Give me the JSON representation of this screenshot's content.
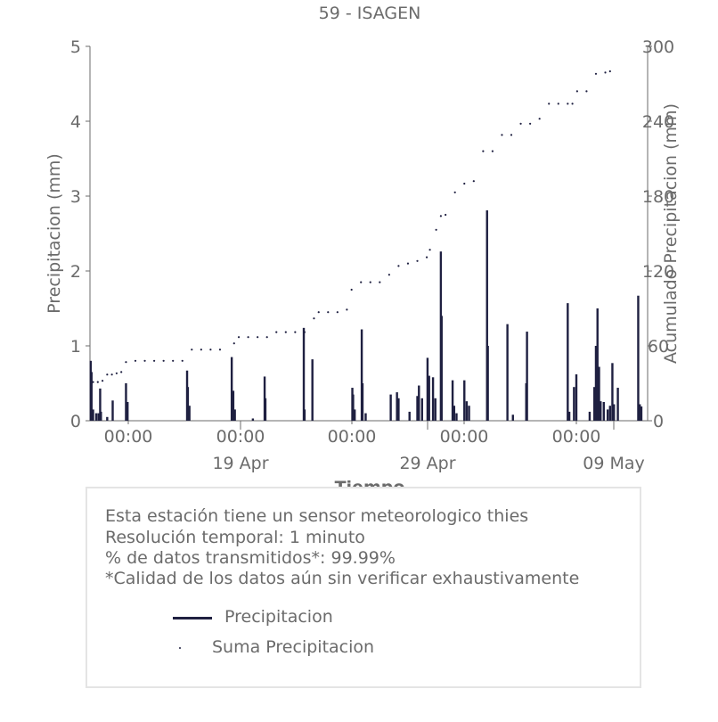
{
  "chart_data": {
    "type": "bar",
    "title": "59 - ISAGEN",
    "xlabel": "Tiempo",
    "ylabel": "Precipitacion (mm)",
    "y2label": "Acumulado Precipitacion (mm)",
    "ylim": [
      0,
      5
    ],
    "y2lim": [
      0,
      300
    ],
    "yticks": [
      "0",
      "1",
      "2",
      "3",
      "4",
      "5"
    ],
    "y2ticks": [
      "0",
      "60",
      "120",
      "180",
      "240",
      "300"
    ],
    "xlim": [
      "2025-04-10 20:00",
      "2025-05-10 12:00"
    ],
    "xticks_minor": [
      "00:00",
      "00:00",
      "00:00",
      "00:00",
      "00:00"
    ],
    "xticks_major": [
      "19 Apr",
      "29 Apr",
      "09 May"
    ],
    "grid": false,
    "series": [
      {
        "name": "Precipitacion",
        "type": "bar",
        "color": "#1f2041",
        "points": [
          [
            "2025-04-10 21:00",
            0.8
          ],
          [
            "2025-04-10 22:00",
            0.65
          ],
          [
            "2025-04-11 00:00",
            0.15
          ],
          [
            "2025-04-11 04:00",
            0.1
          ],
          [
            "2025-04-11 07:00",
            0.1
          ],
          [
            "2025-04-11 09:00",
            0.43
          ],
          [
            "2025-04-11 10:00",
            0.12
          ],
          [
            "2025-04-11 18:00",
            0.05
          ],
          [
            "2025-04-12 01:00",
            0.27
          ],
          [
            "2025-04-12 18:00",
            0.5
          ],
          [
            "2025-04-12 20:00",
            0.25
          ],
          [
            "2025-04-16 00:00",
            0.67
          ],
          [
            "2025-04-16 01:00",
            0.45
          ],
          [
            "2025-04-16 03:00",
            0.2
          ],
          [
            "2025-04-18 09:00",
            0.85
          ],
          [
            "2025-04-18 11:00",
            0.4
          ],
          [
            "2025-04-18 13:00",
            0.15
          ],
          [
            "2025-04-19 12:00",
            0.03
          ],
          [
            "2025-04-20 03:00",
            0.59
          ],
          [
            "2025-04-20 04:00",
            0.3
          ],
          [
            "2025-04-22 05:00",
            1.24
          ],
          [
            "2025-04-22 06:00",
            0.15
          ],
          [
            "2025-04-22 16:00",
            0.82
          ],
          [
            "2025-04-24 19:00",
            0.44
          ],
          [
            "2025-04-24 20:00",
            0.35
          ],
          [
            "2025-04-24 22:00",
            0.15
          ],
          [
            "2025-04-25 07:00",
            1.22
          ],
          [
            "2025-04-25 08:00",
            0.5
          ],
          [
            "2025-04-25 12:00",
            0.1
          ],
          [
            "2025-04-26 20:00",
            0.35
          ],
          [
            "2025-04-27 04:00",
            0.38
          ],
          [
            "2025-04-27 06:00",
            0.3
          ],
          [
            "2025-04-27 20:00",
            0.12
          ],
          [
            "2025-04-28 06:00",
            0.33
          ],
          [
            "2025-04-28 08:00",
            0.47
          ],
          [
            "2025-04-28 12:00",
            0.3
          ],
          [
            "2025-04-28 19:00",
            0.84
          ],
          [
            "2025-04-28 21:00",
            0.6
          ],
          [
            "2025-04-29 02:00",
            0.58
          ],
          [
            "2025-04-29 05:00",
            0.3
          ],
          [
            "2025-04-29 12:00",
            2.26
          ],
          [
            "2025-04-29 13:00",
            1.4
          ],
          [
            "2025-04-30 03:00",
            0.54
          ],
          [
            "2025-04-30 05:00",
            0.2
          ],
          [
            "2025-04-30 08:00",
            0.1
          ],
          [
            "2025-04-30 18:00",
            0.54
          ],
          [
            "2025-04-30 21:00",
            0.26
          ],
          [
            "2025-05-01 00:00",
            0.2
          ],
          [
            "2025-05-01 23:00",
            2.81
          ],
          [
            "2025-05-02 00:00",
            1.0
          ],
          [
            "2025-05-03 01:00",
            1.29
          ],
          [
            "2025-05-03 08:00",
            0.08
          ],
          [
            "2025-05-04 01:00",
            0.5
          ],
          [
            "2025-05-04 02:00",
            1.19
          ],
          [
            "2025-05-06 06:00",
            1.57
          ],
          [
            "2025-05-06 08:00",
            0.12
          ],
          [
            "2025-05-06 14:00",
            0.45
          ],
          [
            "2025-05-06 17:00",
            0.62
          ],
          [
            "2025-05-07 10:00",
            0.12
          ],
          [
            "2025-05-07 16:00",
            0.45
          ],
          [
            "2025-05-07 18:00",
            1.0
          ],
          [
            "2025-05-07 20:00",
            1.5
          ],
          [
            "2025-05-07 22:00",
            0.72
          ],
          [
            "2025-05-08 00:00",
            0.26
          ],
          [
            "2025-05-08 04:00",
            0.25
          ],
          [
            "2025-05-08 09:00",
            0.15
          ],
          [
            "2025-05-08 12:00",
            0.2
          ],
          [
            "2025-05-08 15:00",
            0.77
          ],
          [
            "2025-05-08 17:00",
            0.22
          ],
          [
            "2025-05-08 22:00",
            0.44
          ],
          [
            "2025-05-10 00:00",
            1.67
          ],
          [
            "2025-05-10 02:00",
            0.22
          ],
          [
            "2025-05-10 04:00",
            0.19
          ]
        ]
      },
      {
        "name": "Suma Precipicacion",
        "type": "scatter",
        "color": "#1f2041",
        "points": [
          [
            "2025-04-11 00:00",
            31
          ],
          [
            "2025-04-11 06:00",
            31
          ],
          [
            "2025-04-11 12:00",
            32
          ],
          [
            "2025-04-11 18:00",
            37
          ],
          [
            "2025-04-12 00:00",
            37
          ],
          [
            "2025-04-12 06:00",
            38
          ],
          [
            "2025-04-12 12:00",
            39
          ],
          [
            "2025-04-12 18:00",
            47
          ],
          [
            "2025-04-13 06:00",
            48
          ],
          [
            "2025-04-13 18:00",
            48
          ],
          [
            "2025-04-14 06:00",
            48
          ],
          [
            "2025-04-14 18:00",
            48
          ],
          [
            "2025-04-15 06:00",
            48
          ],
          [
            "2025-04-15 18:00",
            48
          ],
          [
            "2025-04-16 06:00",
            57
          ],
          [
            "2025-04-16 18:00",
            57
          ],
          [
            "2025-04-17 06:00",
            57
          ],
          [
            "2025-04-17 18:00",
            57
          ],
          [
            "2025-04-18 12:00",
            62
          ],
          [
            "2025-04-18 18:00",
            67
          ],
          [
            "2025-04-19 06:00",
            67
          ],
          [
            "2025-04-19 18:00",
            67
          ],
          [
            "2025-04-20 06:00",
            67
          ],
          [
            "2025-04-20 18:00",
            71
          ],
          [
            "2025-04-21 06:00",
            71
          ],
          [
            "2025-04-21 18:00",
            71
          ],
          [
            "2025-04-22 06:00",
            71
          ],
          [
            "2025-04-22 18:00",
            82
          ],
          [
            "2025-04-23 00:00",
            87
          ],
          [
            "2025-04-23 12:00",
            87
          ],
          [
            "2025-04-24 00:00",
            87
          ],
          [
            "2025-04-24 12:00",
            89
          ],
          [
            "2025-04-24 18:00",
            105
          ],
          [
            "2025-04-25 06:00",
            111
          ],
          [
            "2025-04-25 18:00",
            111
          ],
          [
            "2025-04-26 06:00",
            111
          ],
          [
            "2025-04-26 18:00",
            117
          ],
          [
            "2025-04-27 06:00",
            124
          ],
          [
            "2025-04-27 18:00",
            126
          ],
          [
            "2025-04-28 06:00",
            128
          ],
          [
            "2025-04-28 18:00",
            131
          ],
          [
            "2025-04-28 22:00",
            137
          ],
          [
            "2025-04-29 06:00",
            153
          ],
          [
            "2025-04-29 12:00",
            164
          ],
          [
            "2025-04-29 18:00",
            165
          ],
          [
            "2025-04-30 06:00",
            183
          ],
          [
            "2025-04-30 18:00",
            190
          ],
          [
            "2025-05-01 06:00",
            192
          ],
          [
            "2025-05-01 18:00",
            216
          ],
          [
            "2025-05-02 06:00",
            216
          ],
          [
            "2025-05-02 18:00",
            229
          ],
          [
            "2025-05-03 06:00",
            229
          ],
          [
            "2025-05-03 18:00",
            238
          ],
          [
            "2025-05-04 06:00",
            238
          ],
          [
            "2025-05-04 18:00",
            242
          ],
          [
            "2025-05-05 06:00",
            254
          ],
          [
            "2025-05-05 18:00",
            254
          ],
          [
            "2025-05-06 06:00",
            254
          ],
          [
            "2025-05-06 12:00",
            254
          ],
          [
            "2025-05-06 18:00",
            264
          ],
          [
            "2025-05-07 06:00",
            264
          ],
          [
            "2025-05-07 18:00",
            278
          ],
          [
            "2025-05-08 06:00",
            279
          ],
          [
            "2025-05-08 12:00",
            280
          ]
        ]
      }
    ],
    "legend": {
      "position": "bottom",
      "items": [
        "Precipicacion",
        "Suma Precipicacion"
      ]
    }
  },
  "notes": {
    "line1": "Esta estación tiene un sensor meteorologico thies",
    "line2": "Resolución temporal: 1 minuto",
    "line3": "% de datos transmitidos*: 99.99%",
    "line4": "*Calidad de los datos aún sin verificar exhaustivamente"
  },
  "legend_labels": {
    "precip": "Precipitacion",
    "suma": "Suma Precipitacion"
  },
  "colors": {
    "series": "#1f2041",
    "text": "#6b6b6b",
    "axis": "#6b6b6b",
    "box_border": "#e4e4e4"
  }
}
